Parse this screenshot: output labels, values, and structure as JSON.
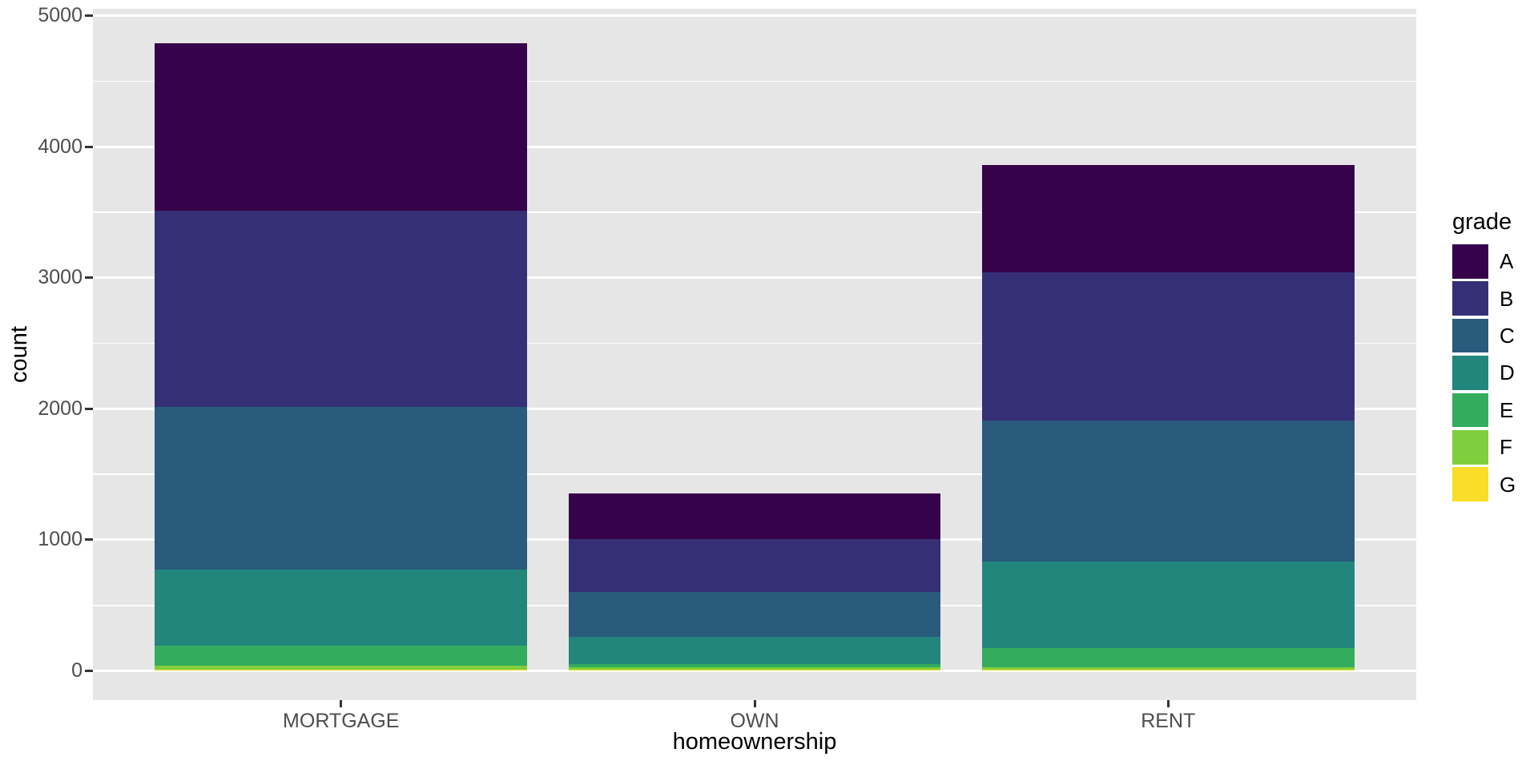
{
  "chart_data": {
    "type": "bar",
    "stacked": true,
    "stack_order_top_to_bottom": [
      "A",
      "B",
      "C",
      "D",
      "E",
      "F",
      "G"
    ],
    "title": "",
    "xlabel": "homeownership",
    "ylabel": "count",
    "categories": [
      "MORTGAGE",
      "OWN",
      "RENT"
    ],
    "series": [
      {
        "name": "A",
        "color": "#36034B",
        "values": [
          1277,
          347,
          815
        ]
      },
      {
        "name": "B",
        "color": "#353075",
        "values": [
          1495,
          406,
          1130
        ]
      },
      {
        "name": "C",
        "color": "#2A5A7C",
        "values": [
          1241,
          340,
          1078
        ]
      },
      {
        "name": "D",
        "color": "#22867C",
        "values": [
          586,
          206,
          663
        ]
      },
      {
        "name": "E",
        "color": "#35AB5E",
        "values": [
          150,
          27,
          146
        ]
      },
      {
        "name": "F",
        "color": "#80CE3D",
        "values": [
          28,
          15,
          14
        ]
      },
      {
        "name": "G",
        "color": "#FADD28",
        "values": [
          12,
          12,
          12
        ]
      }
    ],
    "bar_totals": [
      4789,
      1353,
      3858
    ],
    "ylim": [
      0,
      5000
    ],
    "yticks": [
      0,
      1000,
      2000,
      3000,
      4000,
      5000
    ],
    "yticks_minor": [
      500,
      1500,
      2500,
      3500,
      4500
    ],
    "grid": "on",
    "legend": {
      "title": "grade",
      "position": "right",
      "entries": [
        "A",
        "B",
        "C",
        "D",
        "E",
        "F",
        "G"
      ]
    },
    "style": {
      "panel_background": "#E6E6E6",
      "grid_color": "#FFFFFF",
      "axis_text_color": "#4D4D4D",
      "axis_title_color": "#000000",
      "tick_mark_color": "#333333",
      "figure_background": "#FFFFFF"
    }
  }
}
